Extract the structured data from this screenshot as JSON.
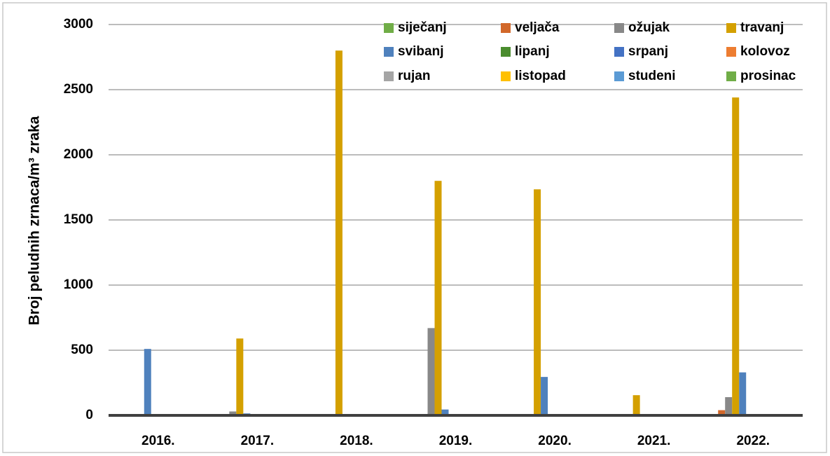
{
  "chart_data": {
    "type": "bar",
    "y_label": "Broj peludnih zrnaca/m³ zraka",
    "categories": [
      "2016.",
      "2017.",
      "2018.",
      "2019.",
      "2020.",
      "2021.",
      "2022."
    ],
    "series": [
      {
        "name": "siječanj",
        "color": "#70ad47",
        "values": [
          0,
          0,
          0,
          0,
          0,
          0,
          10
        ]
      },
      {
        "name": "veljača",
        "color": "#d2682a",
        "values": [
          0,
          0,
          0,
          0,
          0,
          0,
          40
        ]
      },
      {
        "name": "ožujak",
        "color": "#888888",
        "values": [
          0,
          30,
          0,
          670,
          0,
          0,
          140
        ]
      },
      {
        "name": "travanj",
        "color": "#d4a000",
        "values": [
          0,
          590,
          2800,
          1800,
          1735,
          155,
          2440
        ]
      },
      {
        "name": "svibanj",
        "color": "#4f81bd",
        "values": [
          510,
          15,
          0,
          45,
          295,
          0,
          330
        ]
      },
      {
        "name": "lipanj",
        "color": "#4a8c2e",
        "values": [
          0,
          0,
          0,
          0,
          0,
          0,
          0
        ]
      },
      {
        "name": "srpanj",
        "color": "#4472c4",
        "values": [
          0,
          0,
          0,
          0,
          0,
          0,
          0
        ]
      },
      {
        "name": "kolovoz",
        "color": "#ed7d31",
        "values": [
          0,
          0,
          0,
          0,
          0,
          0,
          0
        ]
      },
      {
        "name": "rujan",
        "color": "#a5a5a5",
        "values": [
          0,
          0,
          0,
          0,
          0,
          0,
          0
        ]
      },
      {
        "name": "listopad",
        "color": "#ffc000",
        "values": [
          0,
          0,
          0,
          0,
          0,
          0,
          0
        ]
      },
      {
        "name": "studeni",
        "color": "#5b9bd5",
        "values": [
          0,
          0,
          0,
          0,
          0,
          0,
          0
        ]
      },
      {
        "name": "prosinac",
        "color": "#70ad47",
        "values": [
          0,
          0,
          0,
          0,
          0,
          0,
          0
        ]
      }
    ],
    "ylim": [
      0,
      3000
    ],
    "yticks": [
      0,
      500,
      1000,
      1500,
      2000,
      2500,
      3000
    ],
    "grid": true,
    "legend": "top-right"
  }
}
